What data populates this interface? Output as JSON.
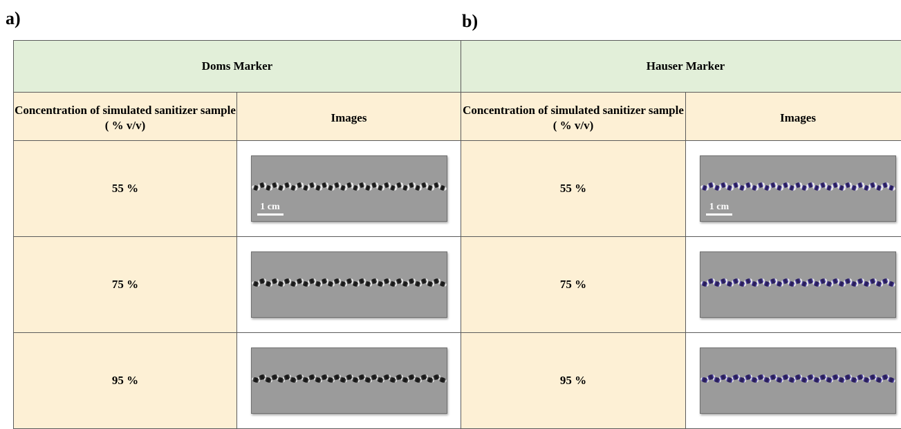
{
  "panels": [
    {
      "label": "a)",
      "marker": "Doms Marker",
      "col_concentration": "Concentration of simulated sanitizer sample ( % v/v)",
      "col_images": "Images",
      "rows": [
        {
          "concentration": "55 %",
          "scale": "1 cm"
        },
        {
          "concentration": "75 %"
        },
        {
          "concentration": "95 %"
        }
      ],
      "dye_color": "#1a1a1a"
    },
    {
      "label": "b)",
      "marker": "Hauser Marker",
      "col_concentration": "Concentration of simulated sanitizer sample ( % v/v)",
      "col_images": "Images",
      "rows": [
        {
          "concentration": "55 %",
          "scale": "1 cm"
        },
        {
          "concentration": "75 %"
        },
        {
          "concentration": "95 %"
        }
      ],
      "dye_color": "#2a1f5c"
    }
  ],
  "colors": {
    "header_bg": "#e2efd9",
    "cell_bg": "#fdf0d5",
    "photo_bg": "#9b9b9b"
  }
}
